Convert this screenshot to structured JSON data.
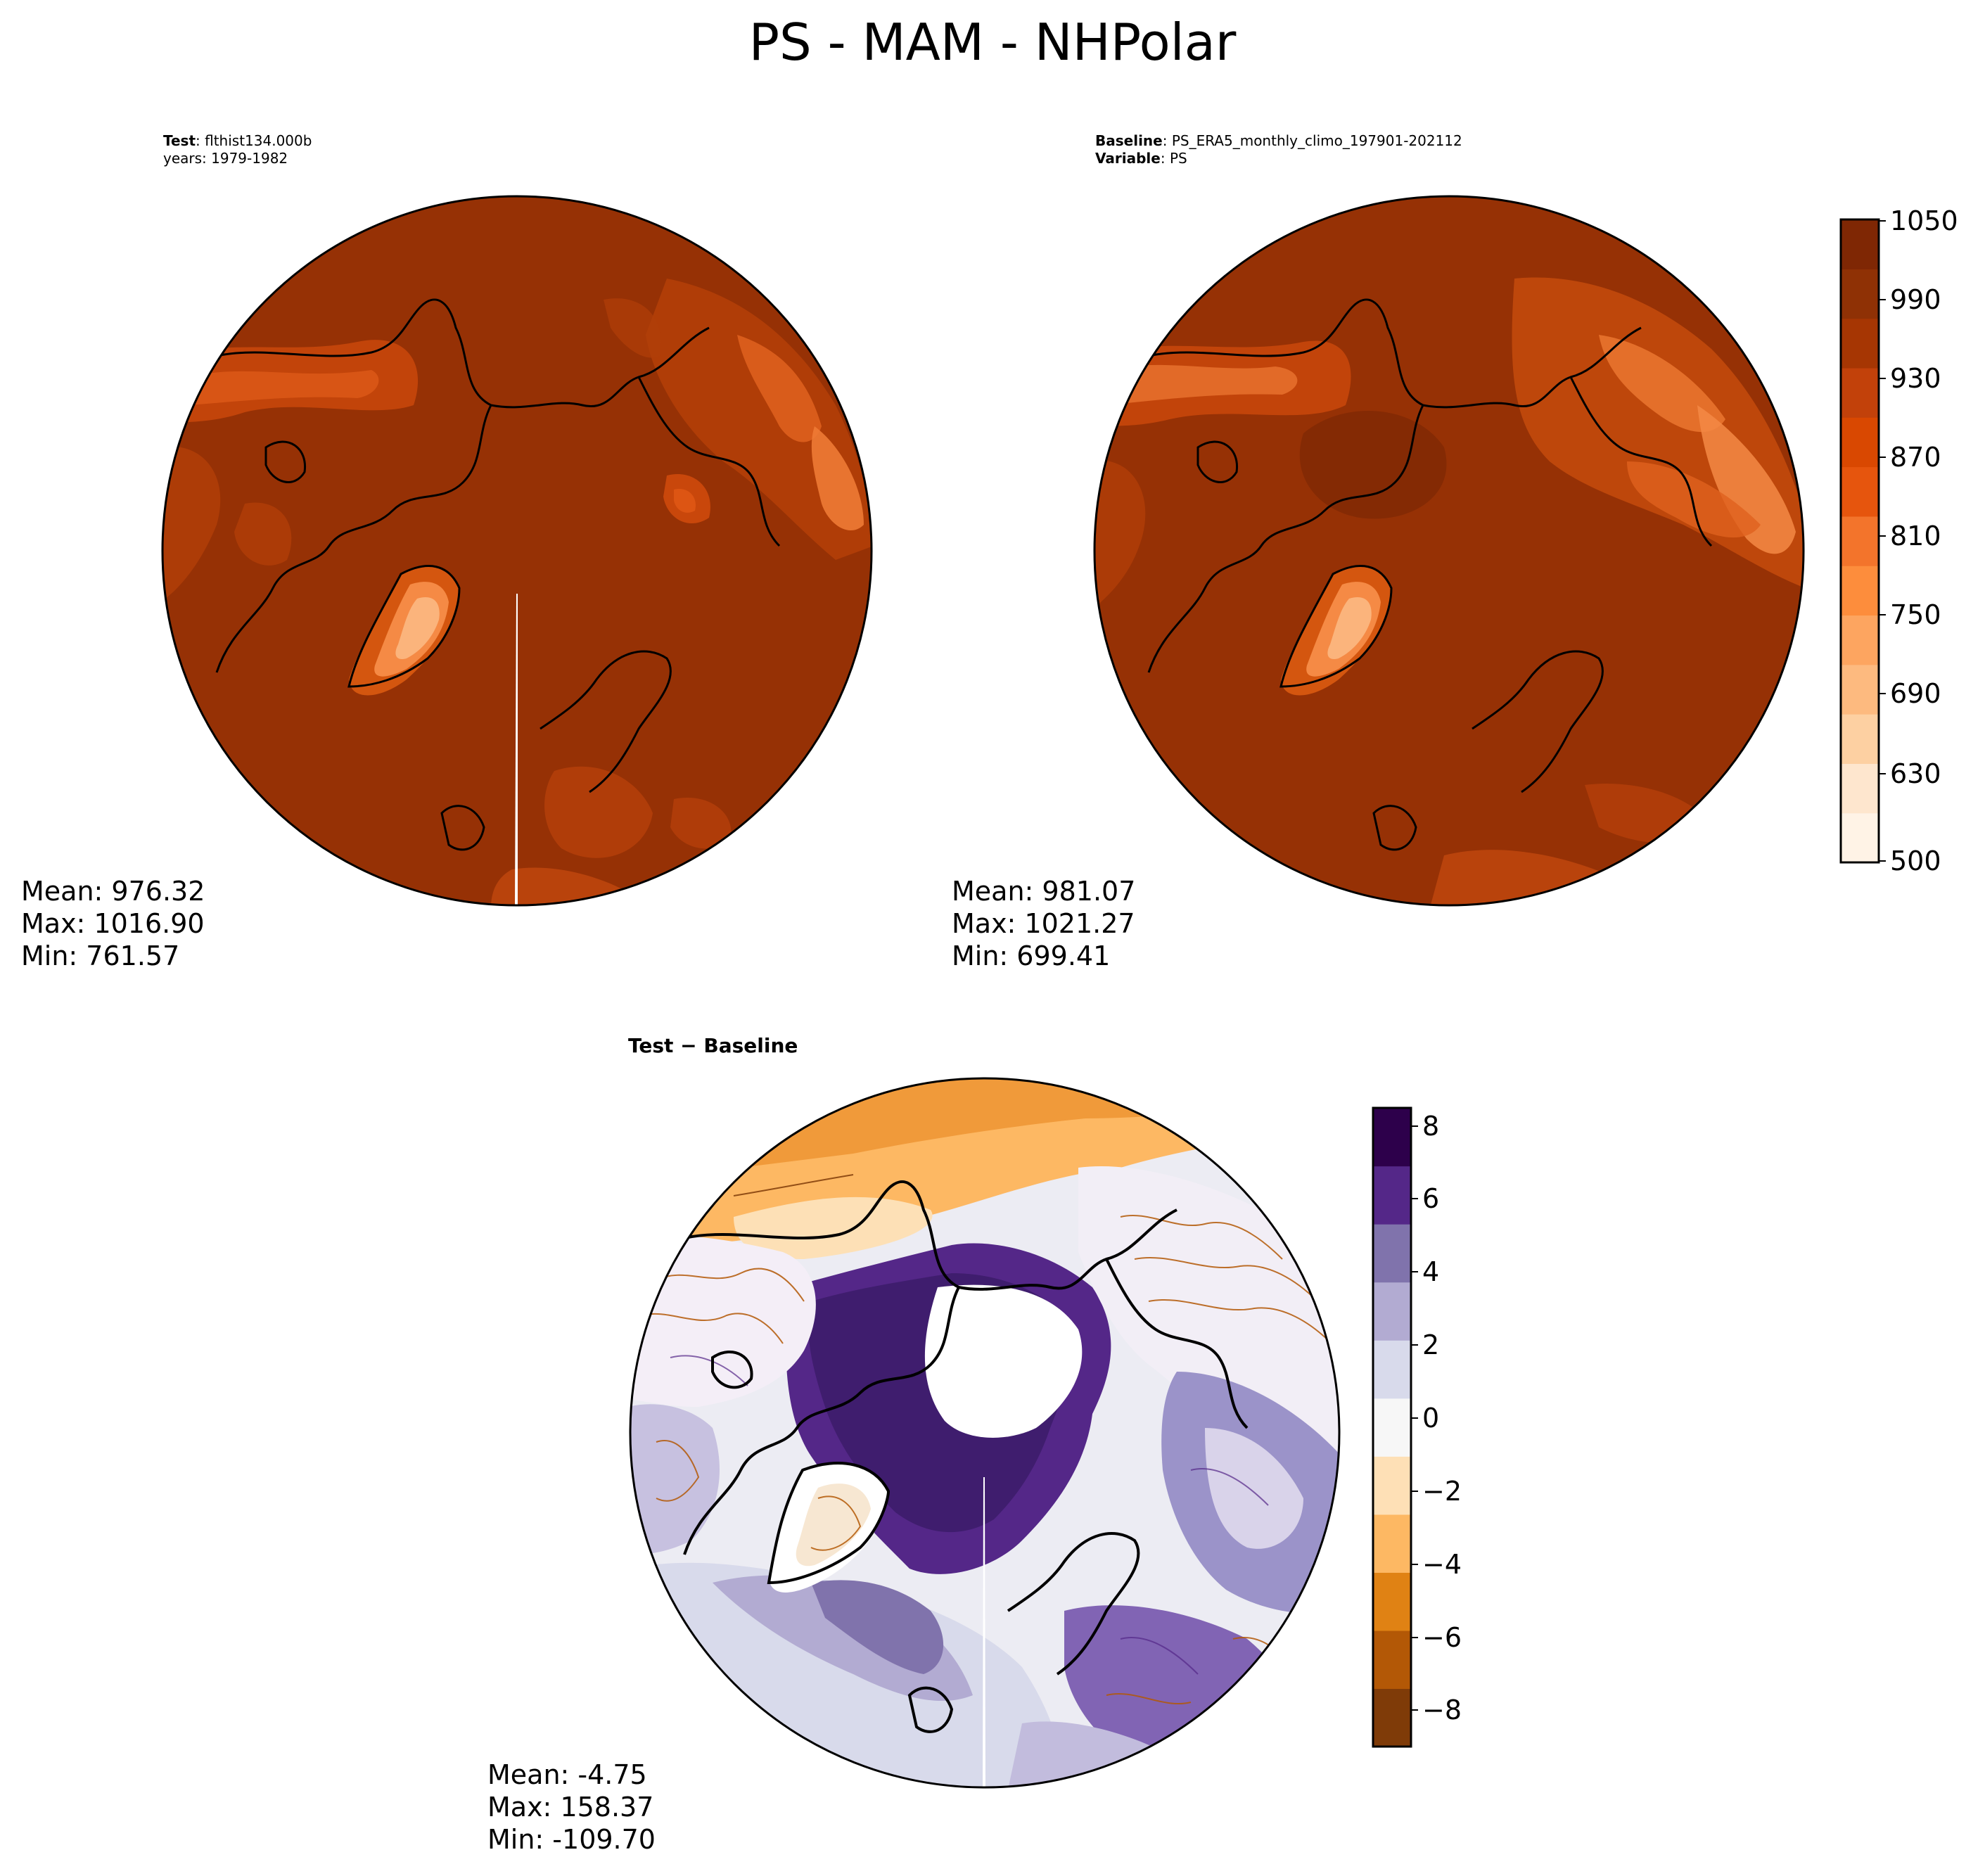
{
  "figure": {
    "title": "PS - MAM - NHPolar"
  },
  "test_panel": {
    "label_bold": "Test",
    "label_value": ": flthist134.000b",
    "years": "years: 1979-1982",
    "mean": "Mean: 976.32",
    "max": "Max: 1016.90",
    "min": "Min: 761.57"
  },
  "baseline_panel": {
    "label_bold": "Baseline",
    "label_value": ": PS_ERA5_monthly_climo_197901-202112",
    "variable_bold": "Variable",
    "variable_value": ": PS",
    "mean": "Mean: 981.07",
    "max": "Max: 1021.27",
    "min": "Min: 699.41"
  },
  "diff_panel": {
    "label": "Test − Baseline",
    "mean": "Mean: -4.75",
    "max": "Max: 158.37",
    "min": "Min: -109.70"
  },
  "colorbar_top": {
    "ticks": [
      "1050",
      "990",
      "930",
      "870",
      "810",
      "750",
      "690",
      "630",
      "500"
    ],
    "colormap": "Oranges",
    "colors": [
      "#fff3e6",
      "#fee6ce",
      "#fdd0a2",
      "#fdba7f",
      "#fda560",
      "#fd8d3c",
      "#f3742b",
      "#e6550d",
      "#d94801",
      "#c2410a",
      "#a63603",
      "#8f3105",
      "#7f2704"
    ]
  },
  "colorbar_diff": {
    "ticks": [
      "8",
      "6",
      "4",
      "2",
      "0",
      "−2",
      "−4",
      "−6",
      "−8"
    ],
    "colormap": "PuOr (purple-orange)",
    "colors": [
      "#7f3b08",
      "#b35806",
      "#e08214",
      "#fdb863",
      "#fee0b6",
      "#f7f7f7",
      "#d8daeb",
      "#b2abd2",
      "#8073ac",
      "#542788",
      "#2d004b"
    ]
  },
  "map": {
    "projection": "North Polar Stereographic",
    "region": "NHPolar",
    "season": "MAM",
    "variable": "PS"
  }
}
